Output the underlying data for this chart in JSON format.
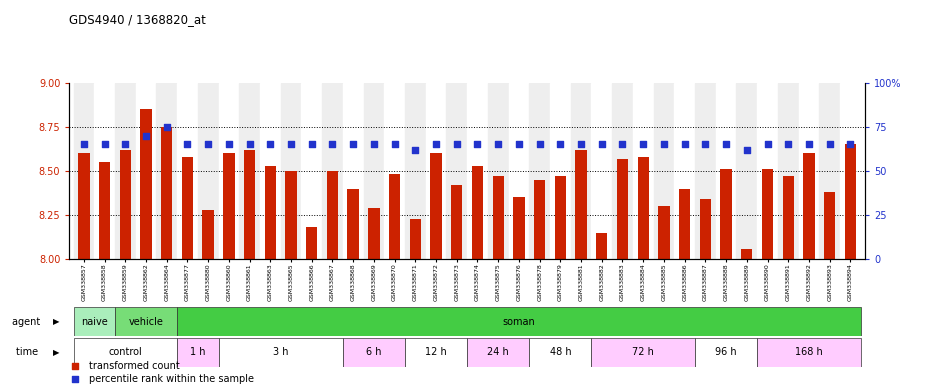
{
  "title": "GDS4940 / 1368820_at",
  "gsm_labels": [
    "GSM338857",
    "GSM338858",
    "GSM338859",
    "GSM338862",
    "GSM338864",
    "GSM338877",
    "GSM338880",
    "GSM338860",
    "GSM338861",
    "GSM338863",
    "GSM338865",
    "GSM338866",
    "GSM338867",
    "GSM338868",
    "GSM338869",
    "GSM338870",
    "GSM338871",
    "GSM338872",
    "GSM338873",
    "GSM338874",
    "GSM338875",
    "GSM338876",
    "GSM338878",
    "GSM338879",
    "GSM338881",
    "GSM338882",
    "GSM338883",
    "GSM338884",
    "GSM338885",
    "GSM338886",
    "GSM338887",
    "GSM338888",
    "GSM338889",
    "GSM338890",
    "GSM338891",
    "GSM338892",
    "GSM338893",
    "GSM338894"
  ],
  "bar_values": [
    8.6,
    8.55,
    8.62,
    8.85,
    8.75,
    8.58,
    8.28,
    8.6,
    8.62,
    8.53,
    8.5,
    8.18,
    8.5,
    8.4,
    8.29,
    8.48,
    8.23,
    8.6,
    8.42,
    8.53,
    8.47,
    8.35,
    8.45,
    8.47,
    8.62,
    8.15,
    8.57,
    8.58,
    8.3,
    8.4,
    8.34,
    8.51,
    8.06,
    8.51,
    8.47,
    8.6,
    8.38,
    8.65
  ],
  "blue_dot_values": [
    65,
    65,
    65,
    70,
    75,
    65,
    65,
    65,
    65,
    65,
    65,
    65,
    65,
    65,
    65,
    65,
    62,
    65,
    65,
    65,
    65,
    65,
    65,
    65,
    65,
    65,
    65,
    65,
    65,
    65,
    65,
    65,
    62,
    65,
    65,
    65,
    65,
    65
  ],
  "ylim_left": [
    8.0,
    9.0
  ],
  "ylim_right": [
    0,
    100
  ],
  "yticks_left": [
    8.0,
    8.25,
    8.5,
    8.75,
    9.0
  ],
  "yticks_right": [
    0,
    25,
    50,
    75,
    100
  ],
  "bar_color": "#cc2200",
  "dot_color": "#2233cc",
  "agent_groups": [
    {
      "label": "naive",
      "start": 0,
      "end": 2,
      "color": "#99ee99"
    },
    {
      "label": "vehicle",
      "start": 2,
      "end": 5,
      "color": "#66dd66"
    },
    {
      "label": "soman",
      "start": 5,
      "end": 38,
      "color": "#44cc44"
    }
  ],
  "time_groups": [
    {
      "label": "control",
      "start": 0,
      "end": 5,
      "color": "#ffffff"
    },
    {
      "label": "1 h",
      "start": 5,
      "end": 7,
      "color": "#ffccff"
    },
    {
      "label": "3 h",
      "start": 7,
      "end": 13,
      "color": "#ffffff"
    },
    {
      "label": "6 h",
      "start": 13,
      "end": 16,
      "color": "#ffccff"
    },
    {
      "label": "12 h",
      "start": 16,
      "end": 19,
      "color": "#ffffff"
    },
    {
      "label": "24 h",
      "start": 19,
      "end": 22,
      "color": "#ffccff"
    },
    {
      "label": "48 h",
      "start": 22,
      "end": 25,
      "color": "#ffffff"
    },
    {
      "label": "72 h",
      "start": 25,
      "end": 30,
      "color": "#ffccff"
    },
    {
      "label": "96 h",
      "start": 30,
      "end": 33,
      "color": "#ffffff"
    },
    {
      "label": "168 h",
      "start": 33,
      "end": 38,
      "color": "#ffccff"
    }
  ],
  "col_bg_even": "#eeeeee",
  "col_bg_odd": "#ffffff"
}
